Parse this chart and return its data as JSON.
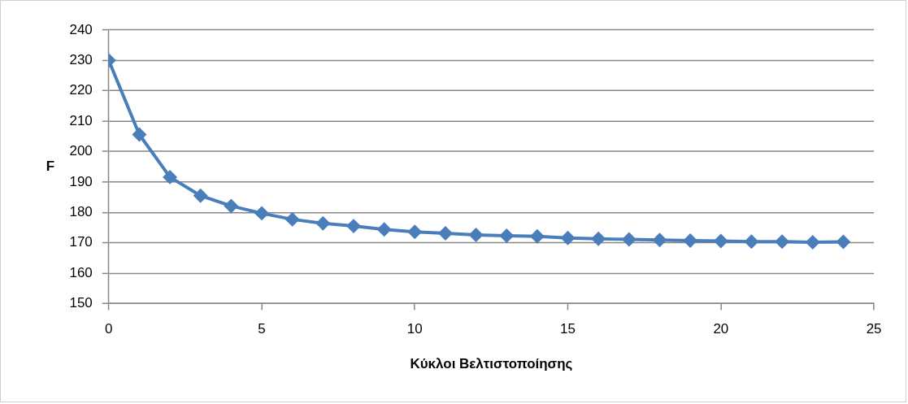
{
  "chart_data": {
    "type": "line",
    "xlabel": "Κύκλοι Βελτιστοποίησης",
    "ylabel": "F",
    "x": [
      0,
      1,
      2,
      3,
      4,
      5,
      6,
      7,
      8,
      9,
      10,
      11,
      12,
      13,
      14,
      15,
      16,
      17,
      18,
      19,
      20,
      21,
      22,
      23,
      24
    ],
    "series": [
      {
        "color": "#4a7ebb",
        "values": [
          230,
          205.6,
          191.6,
          185.5,
          182.1,
          179.7,
          177.7,
          176.4,
          175.5,
          174.4,
          173.6,
          173.1,
          172.6,
          172.3,
          172.1,
          171.6,
          171.3,
          171.1,
          170.9,
          170.7,
          170.6,
          170.4,
          170.4,
          170.2,
          170.3
        ]
      }
    ],
    "xlim": [
      0,
      25
    ],
    "xticks": [
      0,
      5,
      10,
      15,
      20,
      25
    ],
    "ylim": [
      150,
      240
    ],
    "yticks": [
      150,
      160,
      170,
      180,
      190,
      200,
      210,
      220,
      230,
      240
    ],
    "grid": "y",
    "marker": "diamond",
    "line_style": "solid"
  }
}
